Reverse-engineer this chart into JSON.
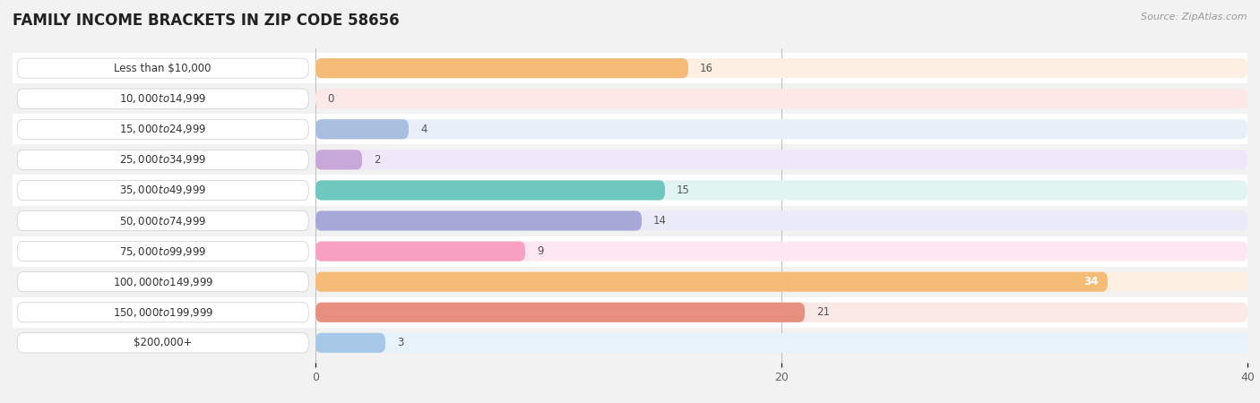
{
  "title": "FAMILY INCOME BRACKETS IN ZIP CODE 58656",
  "source": "Source: ZipAtlas.com",
  "categories": [
    "Less than $10,000",
    "$10,000 to $14,999",
    "$15,000 to $24,999",
    "$25,000 to $34,999",
    "$35,000 to $49,999",
    "$50,000 to $74,999",
    "$75,000 to $99,999",
    "$100,000 to $149,999",
    "$150,000 to $199,999",
    "$200,000+"
  ],
  "values": [
    16,
    0,
    4,
    2,
    15,
    14,
    9,
    34,
    21,
    3
  ],
  "bar_colors": [
    "#F5BC78",
    "#F0908A",
    "#A8BFE0",
    "#C8A8D8",
    "#6EC8C0",
    "#A8A8D8",
    "#F8A0C0",
    "#F5BC78",
    "#E89080",
    "#A8C8E8"
  ],
  "bar_bg_colors": [
    "#FDF0E2",
    "#FDE8E8",
    "#E8EFF8",
    "#F0E8F8",
    "#E0F5F2",
    "#EAEAF8",
    "#FDE8F2",
    "#FDF0E2",
    "#FAE8E4",
    "#E8F2FA"
  ],
  "label_bg_color": "#FFFFFF",
  "xlim_left": -13,
  "xlim_right": 40,
  "xticks": [
    0,
    20,
    40
  ],
  "bg_color": "#F2F2F2",
  "row_bg_color": "#EBEBEB",
  "title_fontsize": 12,
  "label_fontsize": 8.5,
  "value_fontsize": 8.5,
  "bar_height": 0.65
}
